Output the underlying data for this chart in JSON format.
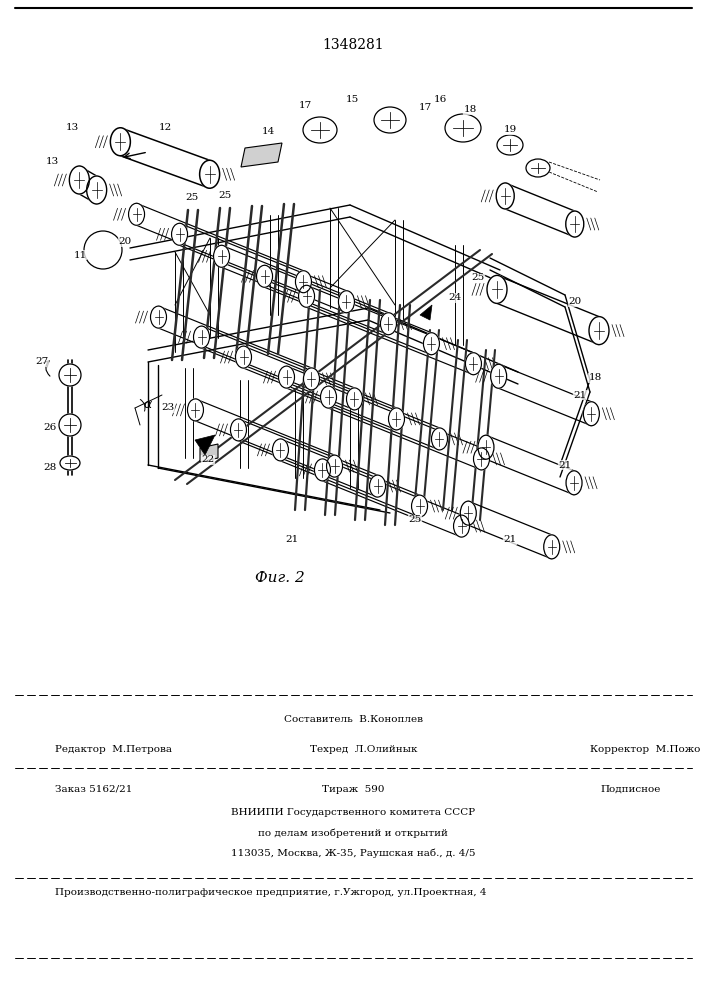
{
  "patent_number": "1348281",
  "fig_caption": "Фиг. 2",
  "bg_color": "#ffffff",
  "text_color": "#000000",
  "editor_label": "Редактор  М.Петрова",
  "compiler_label": "Составитель  В.Коноплев",
  "techred_label": "Техред  Л.Олийнык",
  "corrector_label": "Корректор  М.Пожо",
  "order_label": "Заказ 5162/21",
  "tirazh_label": "Тираж  590",
  "podpisnoe_label": "Подписное",
  "vniiipi_line1": "ВНИИПИ Государственного комитета СССР",
  "vniiipi_line2": "по делам изобретений и открытий",
  "vniiipi_line3": "113035, Москва, Ж-35, Раушская наб., д. 4/5",
  "production_line": "Производственно-полиграфическое предприятие, г.Ужгород, ул.Проектная, 4"
}
